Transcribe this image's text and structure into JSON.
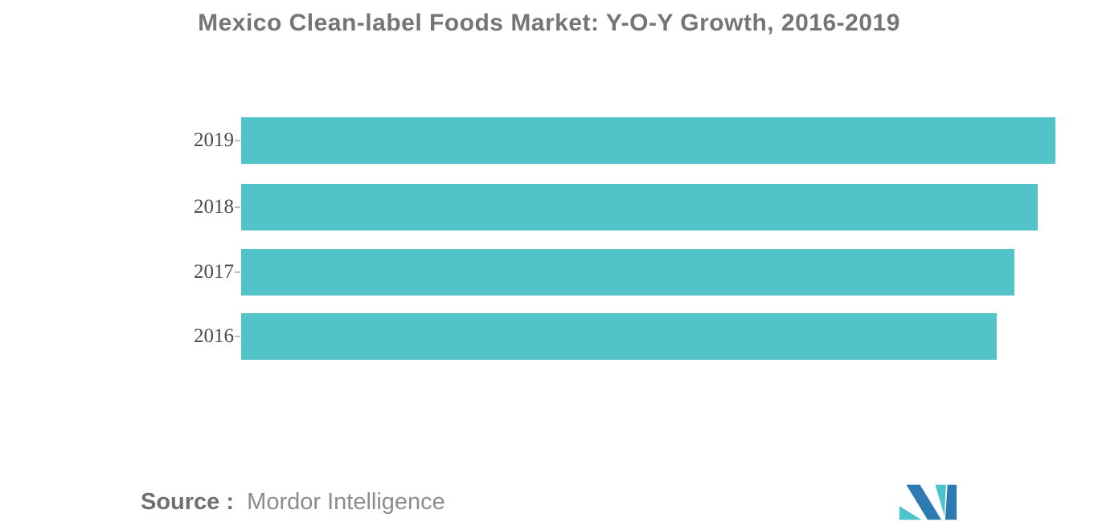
{
  "title": {
    "text": "Mexico Clean-label Foods Market: Y-O-Y Growth, 2016-2019",
    "color": "#757575"
  },
  "source": {
    "label": "Source :",
    "value": "Mordor Intelligence"
  },
  "logo": {
    "name": "mordor-intelligence-logo",
    "colors": {
      "blue": "#2e7bb4",
      "teal": "#4cc4cb"
    }
  },
  "chart_data": {
    "type": "bar",
    "orientation": "horizontal",
    "title": "Mexico Clean-label Foods Market: Y-O-Y Growth, 2016-2019",
    "categories": [
      "2019",
      "2018",
      "2017",
      "2016"
    ],
    "values": [
      100,
      97.8,
      95.0,
      92.8
    ],
    "value_units": "relative bar length, 2019 bar = 100 (no numeric value axis shown in image)",
    "bar_color": "#52c3c8",
    "xlabel": "",
    "ylabel": "",
    "grid": false,
    "value_axis_visible": false,
    "legend": false
  }
}
